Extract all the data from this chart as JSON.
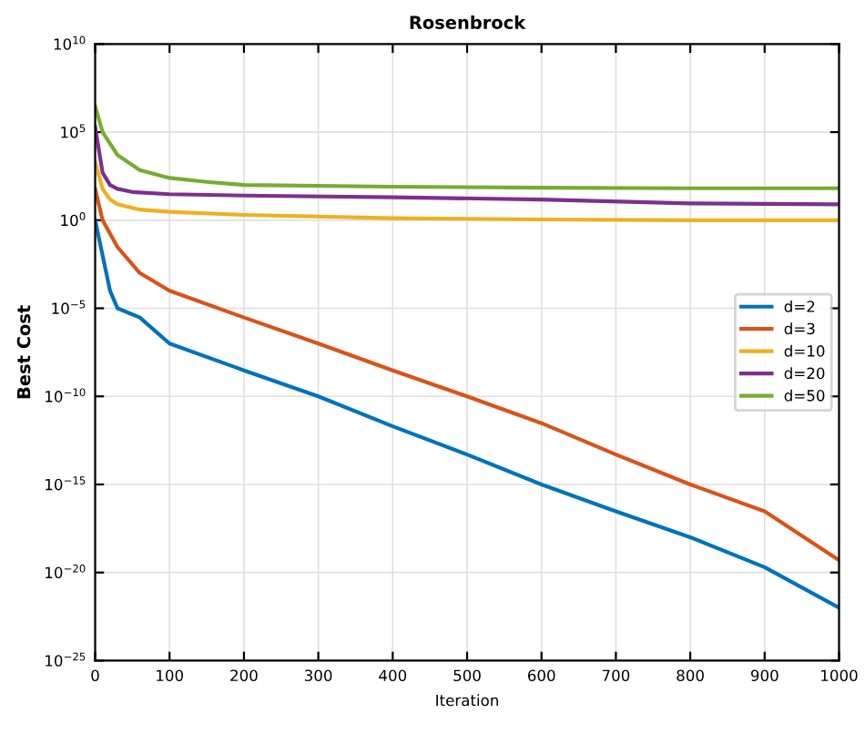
{
  "chart_data": {
    "type": "line",
    "title": "Rosenbrock",
    "xlabel": "Iteration",
    "ylabel": "Best Cost",
    "log": true,
    "grid": true,
    "legend": "right",
    "line_style": "solid",
    "marker": "none",
    "xlim": [
      0,
      1000
    ],
    "xticks": [
      0,
      100,
      200,
      300,
      400,
      500,
      600,
      700,
      800,
      900,
      1000
    ],
    "ylim": [
      1e-25,
      10000000000.0
    ],
    "yticks": [
      {
        "value": 1e-25,
        "label": "10$^{−25}$"
      },
      {
        "value": 1e-20,
        "label": "10$^{−20}$"
      },
      {
        "value": 1e-15,
        "label": "10$^{−15}$"
      },
      {
        "value": 1e-10,
        "label": "10$^{−10}$"
      },
      {
        "value": 1e-05,
        "label": "10$^{−5}$"
      },
      {
        "value": 1,
        "label": "10$^{0}$"
      },
      {
        "value": 100000.0,
        "label": "10$^{5}$"
      },
      {
        "value": 10000000000.0,
        "label": "10$^{10}$"
      }
    ],
    "series": [
      {
        "name": "d=2",
        "color": "#0072bd",
        "x": [
          0,
          10,
          20,
          30,
          60,
          100,
          200,
          300,
          400,
          500,
          600,
          700,
          800,
          900,
          1000
        ],
        "values": [
          1,
          0.01,
          0.0001,
          1e-05,
          3e-06,
          1e-07,
          3e-09,
          1e-10,
          2e-12,
          5e-14,
          1e-15,
          3e-17,
          1e-18,
          2e-20,
          1e-22
        ]
      },
      {
        "name": "d=3",
        "color": "#d95319",
        "x": [
          0,
          10,
          30,
          60,
          100,
          200,
          300,
          400,
          500,
          600,
          700,
          800,
          900,
          1000
        ],
        "values": [
          60,
          1,
          0.03,
          0.001,
          0.0001,
          3e-06,
          1e-07,
          3e-09,
          1e-10,
          3e-12,
          5e-14,
          1e-15,
          3e-17,
          5e-20
        ]
      },
      {
        "name": "d=10",
        "color": "#edb120",
        "x": [
          0,
          10,
          20,
          30,
          60,
          100,
          200,
          400,
          600,
          800,
          1000
        ],
        "values": [
          2000,
          60,
          15,
          8,
          4,
          3,
          2,
          1.3,
          1.1,
          1,
          1
        ]
      },
      {
        "name": "d=20",
        "color": "#7e2f8e",
        "x": [
          0,
          10,
          20,
          30,
          50,
          100,
          200,
          400,
          600,
          800,
          1000
        ],
        "values": [
          200000.0,
          500,
          100,
          60,
          40,
          30,
          25,
          20,
          15,
          9,
          8
        ]
      },
      {
        "name": "d=50",
        "color": "#77ac30",
        "x": [
          0,
          10,
          30,
          60,
          100,
          150,
          200,
          400,
          600,
          800,
          1000
        ],
        "values": [
          3000000.0,
          100000.0,
          5000,
          700,
          250,
          150,
          100,
          80,
          70,
          65,
          65
        ]
      }
    ]
  }
}
